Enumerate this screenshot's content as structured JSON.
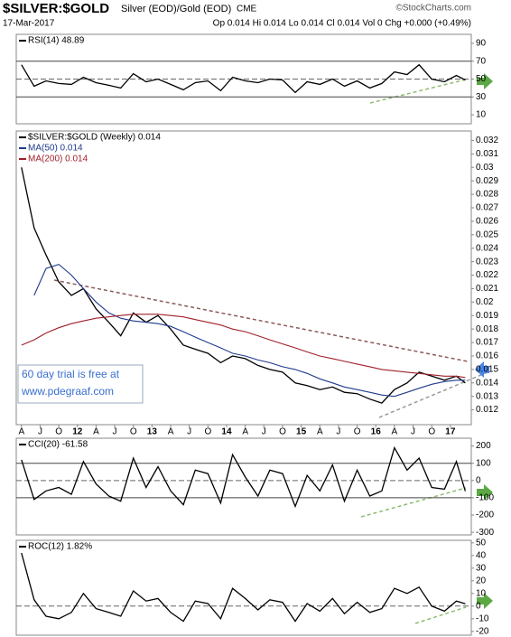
{
  "header": {
    "symbol": "$SILVER:$GOLD",
    "name": "Silver (EOD)/Gold (EOD)",
    "exchange": "CME",
    "source": "©StockCharts.com",
    "date": "17-Mar-2017",
    "quote": "Op 0.014 Hi 0.014 Lo 0.014 Cl 0.014 Vol 0 Chg +0.000 (+0.49%)"
  },
  "chart_data": [
    {
      "type": "line",
      "xlim": [
        2011.18,
        2017.28
      ],
      "ylim": [
        0,
        100
      ],
      "yticks": [
        10,
        30,
        50,
        70,
        90
      ],
      "ref_lines": [
        30,
        70
      ],
      "mid_line": 50,
      "x": [
        2011.25,
        2011.42,
        2011.58,
        2011.75,
        2011.92,
        2012.08,
        2012.25,
        2012.42,
        2012.58,
        2012.75,
        2012.92,
        2013.08,
        2013.25,
        2013.42,
        2013.58,
        2013.75,
        2013.92,
        2014.08,
        2014.25,
        2014.42,
        2014.58,
        2014.75,
        2014.92,
        2015.08,
        2015.25,
        2015.42,
        2015.58,
        2015.75,
        2015.92,
        2016.08,
        2016.25,
        2016.42,
        2016.58,
        2016.75,
        2016.92,
        2017.08,
        2017.2
      ],
      "series": [
        {
          "name": "RSI(14) 48.89",
          "color": "#000000",
          "values": [
            66,
            42,
            48,
            45,
            44,
            52,
            46,
            43,
            40,
            56,
            47,
            50,
            44,
            38,
            46,
            48,
            37,
            52,
            48,
            46,
            50,
            49,
            35,
            47,
            44,
            50,
            42,
            48,
            40,
            45,
            58,
            55,
            66,
            50,
            47,
            54,
            48.89
          ]
        }
      ]
    },
    {
      "type": "line",
      "xlim": [
        2011.18,
        2017.28
      ],
      "ylim": [
        0.0109,
        0.0327
      ],
      "yticks": [
        0.012,
        0.013,
        0.014,
        0.015,
        0.016,
        0.017,
        0.018,
        0.019,
        0.02,
        0.021,
        0.022,
        0.023,
        0.024,
        0.025,
        0.026,
        0.027,
        0.028,
        0.029,
        0.03,
        0.031,
        0.032
      ],
      "xticks": [
        {
          "value": 2011.25,
          "label": "A"
        },
        {
          "value": 2011.5,
          "label": "J"
        },
        {
          "value": 2011.75,
          "label": "O"
        },
        {
          "value": 2012,
          "label": "12"
        },
        {
          "value": 2012.25,
          "label": "A"
        },
        {
          "value": 2012.5,
          "label": "J"
        },
        {
          "value": 2012.75,
          "label": "O"
        },
        {
          "value": 2013,
          "label": "13"
        },
        {
          "value": 2013.25,
          "label": "A"
        },
        {
          "value": 2013.5,
          "label": "J"
        },
        {
          "value": 2013.75,
          "label": "O"
        },
        {
          "value": 2014,
          "label": "14"
        },
        {
          "value": 2014.25,
          "label": "A"
        },
        {
          "value": 2014.5,
          "label": "J"
        },
        {
          "value": 2014.75,
          "label": "O"
        },
        {
          "value": 2015,
          "label": "15"
        },
        {
          "value": 2015.25,
          "label": "A"
        },
        {
          "value": 2015.5,
          "label": "J"
        },
        {
          "value": 2015.75,
          "label": "O"
        },
        {
          "value": 2016,
          "label": "16"
        },
        {
          "value": 2016.25,
          "label": "A"
        },
        {
          "value": 2016.5,
          "label": "J"
        },
        {
          "value": 2016.75,
          "label": "O"
        },
        {
          "value": 2017,
          "label": "17"
        }
      ],
      "annotation": [
        "60 day trial is free at",
        "www.pdegraaf.com"
      ],
      "x": [
        2011.25,
        2011.42,
        2011.58,
        2011.75,
        2011.92,
        2012.08,
        2012.25,
        2012.42,
        2012.58,
        2012.75,
        2012.92,
        2013.08,
        2013.25,
        2013.42,
        2013.58,
        2013.75,
        2013.92,
        2014.08,
        2014.25,
        2014.42,
        2014.58,
        2014.75,
        2014.92,
        2015.08,
        2015.25,
        2015.42,
        2015.58,
        2015.75,
        2015.92,
        2016.08,
        2016.25,
        2016.42,
        2016.58,
        2016.75,
        2016.92,
        2017.08,
        2017.2
      ],
      "series": [
        {
          "name": "$SILVER:$GOLD (Weekly) 0.014",
          "color": "#000000",
          "values": [
            0.03,
            0.0255,
            0.0235,
            0.0215,
            0.0205,
            0.021,
            0.0195,
            0.0185,
            0.0175,
            0.0192,
            0.0185,
            0.019,
            0.018,
            0.0168,
            0.0165,
            0.0162,
            0.0155,
            0.016,
            0.0158,
            0.0153,
            0.015,
            0.0148,
            0.014,
            0.0138,
            0.0135,
            0.0137,
            0.0133,
            0.0132,
            0.0128,
            0.0125,
            0.0135,
            0.014,
            0.0148,
            0.0145,
            0.0142,
            0.0145,
            0.014
          ]
        },
        {
          "name": "MA(50) 0.014",
          "color": "#1f3b8c",
          "values": [
            null,
            0.0205,
            0.0225,
            0.0228,
            0.022,
            0.021,
            0.02,
            0.0192,
            0.0188,
            0.0186,
            0.0185,
            0.0184,
            0.0182,
            0.0178,
            0.0174,
            0.017,
            0.0166,
            0.0162,
            0.016,
            0.0157,
            0.0155,
            0.0152,
            0.015,
            0.0147,
            0.0143,
            0.014,
            0.0137,
            0.0135,
            0.0133,
            0.0131,
            0.013,
            0.0133,
            0.0136,
            0.0139,
            0.0141,
            0.0142,
            0.0142
          ]
        },
        {
          "name": "MA(200) 0.014",
          "color": "#a0202a",
          "values": [
            0.0168,
            0.0172,
            0.0177,
            0.0181,
            0.0184,
            0.0186,
            0.0188,
            0.0189,
            0.019,
            0.0191,
            0.0191,
            0.0191,
            0.019,
            0.0189,
            0.0187,
            0.0185,
            0.0183,
            0.018,
            0.0178,
            0.0175,
            0.0172,
            0.0169,
            0.0166,
            0.0163,
            0.016,
            0.0158,
            0.0156,
            0.0154,
            0.0152,
            0.015,
            0.0149,
            0.0148,
            0.0147,
            0.0146,
            0.0145,
            0.0145,
            0.0144
          ]
        }
      ]
    },
    {
      "type": "line",
      "xlim": [
        2011.18,
        2017.28
      ],
      "ylim": [
        -315,
        245
      ],
      "yticks": [
        -300,
        -200,
        -100,
        0,
        100,
        200
      ],
      "ref_lines": [
        -100,
        100
      ],
      "mid_line": 0,
      "x": [
        2011.25,
        2011.42,
        2011.58,
        2011.75,
        2011.92,
        2012.08,
        2012.25,
        2012.42,
        2012.58,
        2012.75,
        2012.92,
        2013.08,
        2013.25,
        2013.42,
        2013.58,
        2013.75,
        2013.92,
        2014.08,
        2014.25,
        2014.42,
        2014.58,
        2014.75,
        2014.92,
        2015.08,
        2015.25,
        2015.42,
        2015.58,
        2015.75,
        2015.92,
        2016.08,
        2016.25,
        2016.42,
        2016.58,
        2016.75,
        2016.92,
        2017.08,
        2017.2
      ],
      "series": [
        {
          "name": "CCI(20) -61.58",
          "color": "#000000",
          "values": [
            120,
            -110,
            -60,
            -40,
            -80,
            110,
            -20,
            -90,
            -120,
            130,
            -40,
            80,
            -60,
            -140,
            60,
            40,
            -130,
            150,
            20,
            -90,
            60,
            40,
            -150,
            30,
            -60,
            90,
            -120,
            60,
            -90,
            -60,
            190,
            60,
            130,
            -40,
            -50,
            110,
            -61.58
          ]
        }
      ]
    },
    {
      "type": "line",
      "xlim": [
        2011.18,
        2017.28
      ],
      "ylim": [
        -23,
        52
      ],
      "yticks": [
        -20,
        -10,
        0,
        10,
        20,
        30,
        40,
        50
      ],
      "mid_line": 0,
      "x": [
        2011.25,
        2011.42,
        2011.58,
        2011.75,
        2011.92,
        2012.08,
        2012.25,
        2012.42,
        2012.58,
        2012.75,
        2012.92,
        2013.08,
        2013.25,
        2013.42,
        2013.58,
        2013.75,
        2013.92,
        2014.08,
        2014.25,
        2014.42,
        2014.58,
        2014.75,
        2014.92,
        2015.08,
        2015.25,
        2015.42,
        2015.58,
        2015.75,
        2015.92,
        2016.08,
        2016.25,
        2016.42,
        2016.58,
        2016.75,
        2016.92,
        2017.08,
        2017.2
      ],
      "series": [
        {
          "name": "ROC(12) 1.82%",
          "color": "#000000",
          "values": [
            42,
            5,
            -8,
            -10,
            -5,
            10,
            -2,
            -5,
            -8,
            12,
            4,
            6,
            -5,
            -12,
            4,
            2,
            -10,
            14,
            6,
            -3,
            5,
            3,
            -12,
            2,
            -4,
            6,
            -6,
            3,
            -5,
            -2,
            14,
            10,
            15,
            0,
            -4,
            4,
            1.82
          ]
        }
      ]
    }
  ]
}
